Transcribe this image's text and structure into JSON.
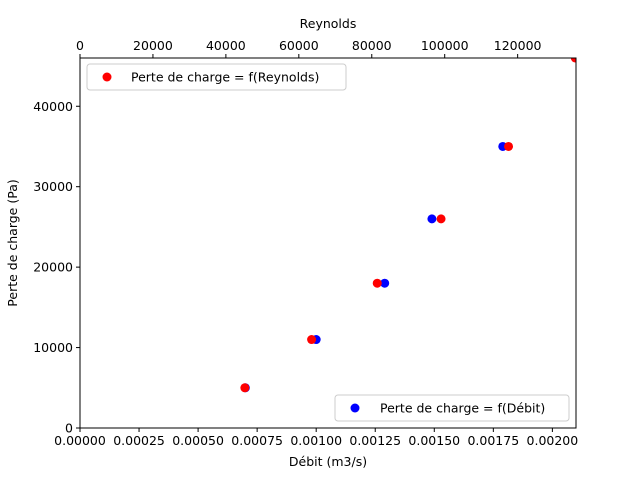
{
  "chart_data": {
    "type": "scatter",
    "xlabel": "Débit (m3/s)",
    "ylabel": "Perte de charge (Pa)",
    "x2label": "Reynolds",
    "xlim": [
      0,
      0.0021
    ],
    "x2lim": [
      0,
      136000
    ],
    "ylim": [
      0,
      46000
    ],
    "x_ticks": [
      "0.00000",
      "0.00025",
      "0.00050",
      "0.00075",
      "0.00100",
      "0.00125",
      "0.00150",
      "0.00175",
      "0.00200"
    ],
    "x2_ticks": [
      "0",
      "20000",
      "40000",
      "60000",
      "80000",
      "100000",
      "120000"
    ],
    "y_ticks": [
      "0",
      "10000",
      "20000",
      "30000",
      "40000"
    ],
    "grid": false,
    "series": [
      {
        "name": "Perte de charge = f(Débit)",
        "axis": "bottom",
        "color": "#0000ff",
        "legend_position": "lower right",
        "x": [
          0.0007,
          0.001,
          0.00129,
          0.00149,
          0.00179
        ],
        "y": [
          5000,
          11000,
          18000,
          26000,
          35000
        ]
      },
      {
        "name": "Perte de charge = f(Reynolds)",
        "axis": "top",
        "color": "#ff0000",
        "legend_position": "upper left",
        "x": [
          45200,
          63500,
          81500,
          99000,
          117500,
          135800
        ],
        "y": [
          5000,
          11000,
          18000,
          26000,
          35000,
          46000
        ]
      }
    ]
  }
}
